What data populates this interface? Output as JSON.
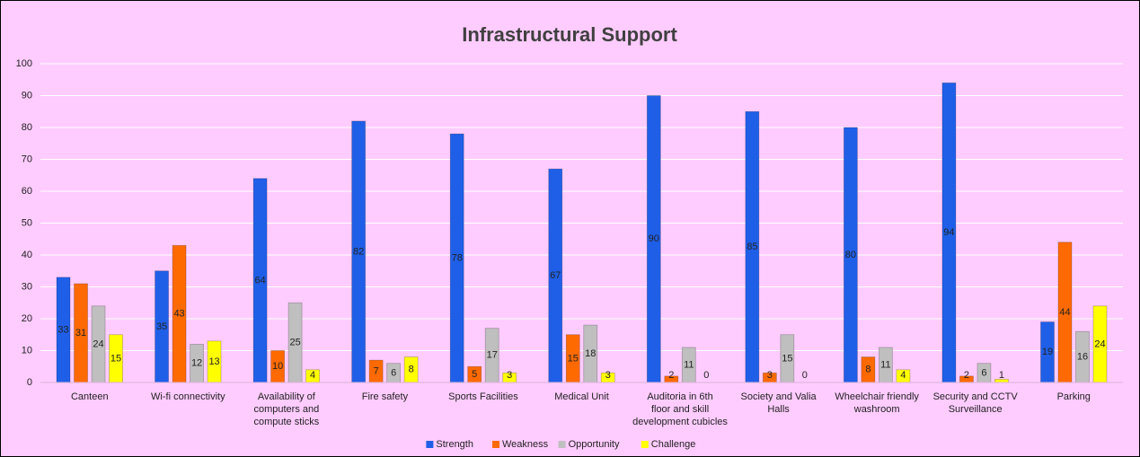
{
  "chart_data": {
    "type": "bar",
    "title": "Infrastructural Support",
    "categories": [
      "Canteen",
      "Wi-fi connectivity",
      "Availability of computers and compute sticks",
      "Fire safety",
      "Sports Facilities",
      "Medical Unit",
      "Auditoria in 6th floor and skill development cubicles",
      "Society and Valia Halls",
      "Wheelchair friendly washroom",
      "Security and CCTV Surveillance",
      "Parking"
    ],
    "series": [
      {
        "name": "Strength",
        "color": "#1f5fe8",
        "values": [
          33,
          35,
          64,
          82,
          78,
          67,
          90,
          85,
          80,
          94,
          19
        ]
      },
      {
        "name": "Weakness",
        "color": "#ff6a00",
        "values": [
          31,
          43,
          10,
          7,
          5,
          15,
          2,
          3,
          8,
          2,
          44
        ]
      },
      {
        "name": "Opportunity",
        "color": "#bfbfbf",
        "values": [
          24,
          12,
          25,
          6,
          17,
          18,
          11,
          15,
          11,
          6,
          16
        ]
      },
      {
        "name": "Challenge",
        "color": "#ffff00",
        "values": [
          15,
          13,
          4,
          8,
          3,
          3,
          0,
          0,
          4,
          1,
          24
        ]
      }
    ],
    "ylim": [
      0,
      100
    ],
    "yticks": [
      0,
      10,
      20,
      30,
      40,
      50,
      60,
      70,
      80,
      90,
      100
    ],
    "grid": true,
    "legend": "bottom"
  }
}
